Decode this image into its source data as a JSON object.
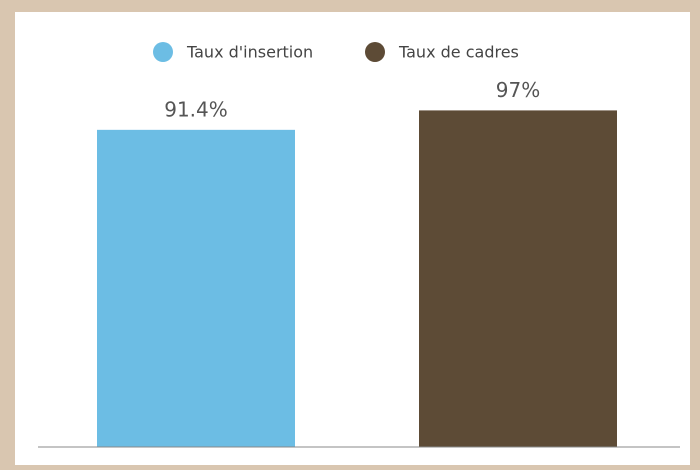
{
  "chart_data": {
    "type": "bar",
    "categories": [
      null
    ],
    "series": [
      {
        "name": "Taux d'insertion",
        "color": "#6cbde4",
        "values": [
          91.4
        ],
        "value_labels": [
          "91.4%"
        ]
      },
      {
        "name": "Taux de cadres",
        "color": "#5d4b36",
        "values": [
          97
        ],
        "value_labels": [
          "97%"
        ]
      }
    ],
    "ylim": [
      0,
      100
    ]
  }
}
